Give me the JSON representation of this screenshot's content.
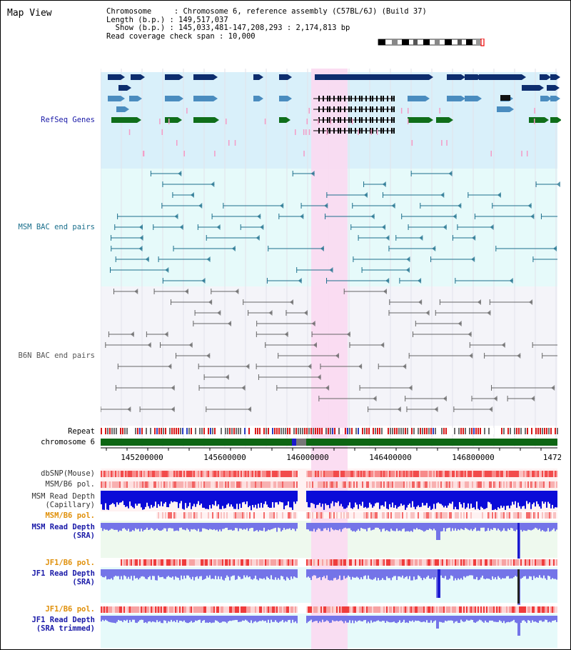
{
  "panel_title": "Map View",
  "header": {
    "line1": "Chromosome     : Chromosome 6, reference assembly (C57BL/6J) (Build 37)",
    "line2": "Length (b.p.) : 149,517,037",
    "line3": "  Show (b.p.) : 145,033,481-147,208,293 : 2,174,813 bp",
    "line4": "Read coverage check span : 10,000"
  },
  "tracks": {
    "refseq": "RefSeq Genes",
    "msm_bac": "MSM BAC end pairs",
    "b6n_bac": "B6N BAC end pairs",
    "repeat": "Repeat",
    "chromosome": "chromosome 6",
    "dbsnp": "dbSNP(Mouse)",
    "msm_b6_pol": "MSM/B6 pol.",
    "msm_read_depth_cap": "MSM Read Depth",
    "msm_read_depth_cap_sub": "(Capillary)",
    "msm_b6_pol_2": "MSM/B6 pol.",
    "msm_read_depth_sra": "MSM Read Depth",
    "msm_read_depth_sra_sub": "(SRA)",
    "jf1_b6_pol": "JF1/B6 pol.",
    "jf1_read_depth": "JF1 Read Depth",
    "jf1_read_depth_sub": "(SRA)",
    "jf1_b6_pol_2": "JF1/B6 pol.",
    "jf1_read_depth_trim": "JF1 Read Depth",
    "jf1_read_depth_trim_sub": "(SRA trimmed)"
  },
  "axis": {
    "ticks": [
      "145200000",
      "145600000",
      "146000000",
      "146400000",
      "146800000",
      "1472"
    ]
  },
  "colors": {
    "refseq_bg": "#d9f0fa",
    "msm_bg": "#e6fafa",
    "b6n_bg": "#f4f4f9",
    "highlight": "#fbd9f1",
    "gene_navy": "#0d2d6e",
    "gene_steel": "#4a8cbf",
    "gene_green": "#0f6e1a",
    "msm_line": "#1c6f8c",
    "b6n_line": "#666666",
    "depth_blue": "#0b0bd8",
    "depth_light": "#7474e8"
  }
}
